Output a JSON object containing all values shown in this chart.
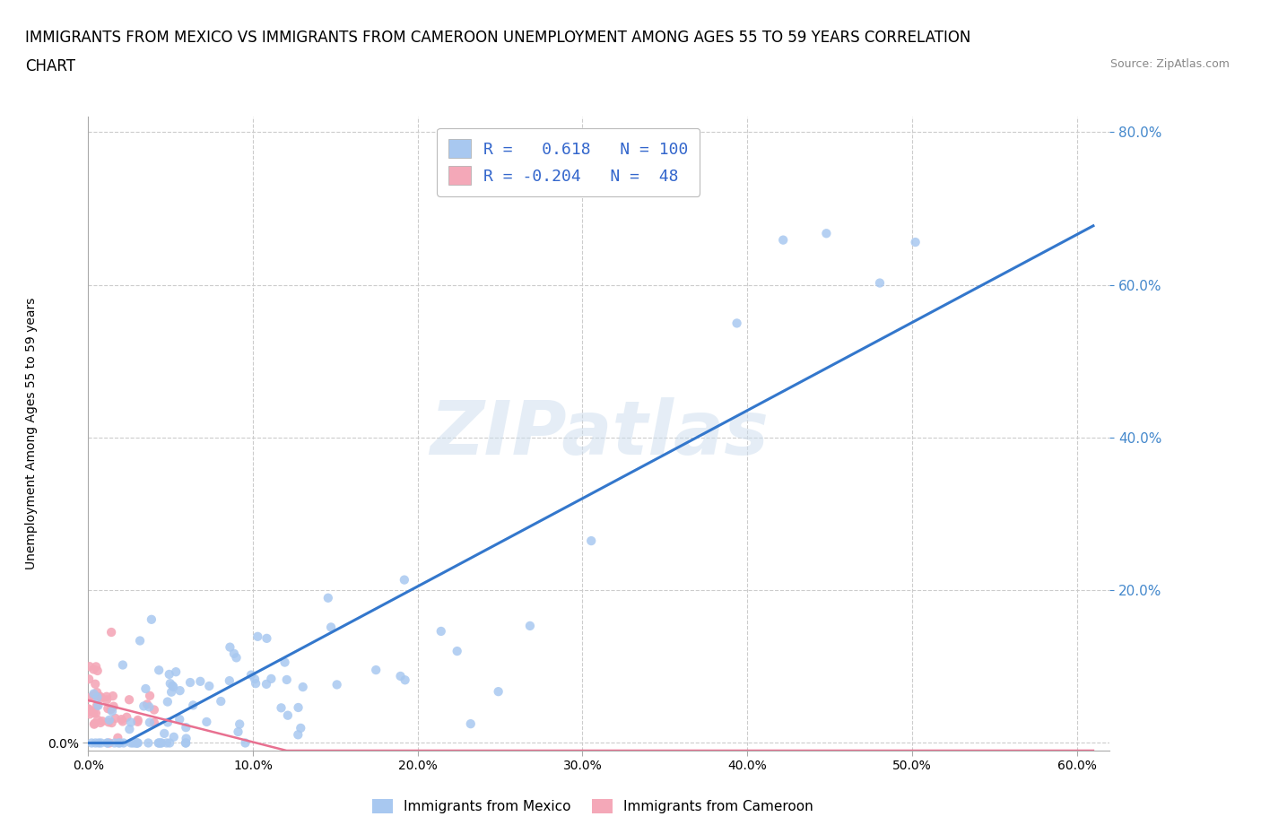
{
  "title_line1": "IMMIGRANTS FROM MEXICO VS IMMIGRANTS FROM CAMEROON UNEMPLOYMENT AMONG AGES 55 TO 59 YEARS CORRELATION",
  "title_line2": "CHART",
  "source": "Source: ZipAtlas.com",
  "ylabel": "Unemployment Among Ages 55 to 59 years",
  "r_mexico": 0.618,
  "n_mexico": 100,
  "r_cameroon": -0.204,
  "n_cameroon": 48,
  "color_mexico": "#a8c8f0",
  "color_cameroon": "#f4a8b8",
  "line_mexico": "#3377cc",
  "line_cameroon": "#e87090",
  "background": "#ffffff",
  "grid_color": "#cccccc",
  "xlim": [
    0.0,
    0.62
  ],
  "ylim": [
    -0.01,
    0.82
  ],
  "xticks": [
    0.0,
    0.1,
    0.2,
    0.3,
    0.4,
    0.5,
    0.6
  ],
  "yticks_left": [
    0.0
  ],
  "yticks_right": [
    0.2,
    0.4,
    0.6,
    0.8
  ],
  "legend_label_mexico": "Immigrants from Mexico",
  "legend_label_cameroon": "Immigrants from Cameroon",
  "watermark": "ZIPatlas",
  "right_axis_color": "#4488cc",
  "title_fontsize": 12,
  "source_fontsize": 9
}
